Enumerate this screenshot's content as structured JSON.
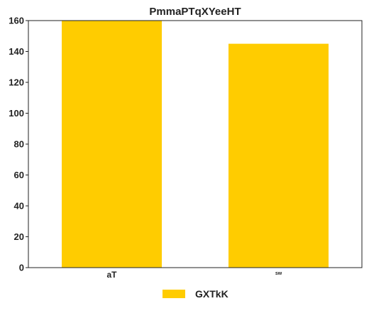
{
  "chart_data": {
    "type": "bar",
    "title": "PmmaPTqXYeeHT",
    "xlabel": "",
    "ylabel": "",
    "categories": [
      "aT",
      "sw"
    ],
    "series": [
      {
        "name": "GXTkK",
        "values": [
          160,
          145
        ],
        "color": "#FFCC00"
      }
    ],
    "ylim": [
      0,
      160
    ],
    "yticks": [
      0,
      20,
      40,
      60,
      80,
      100,
      120,
      140,
      160
    ],
    "grid": false,
    "legend_position": "bottom-center"
  }
}
